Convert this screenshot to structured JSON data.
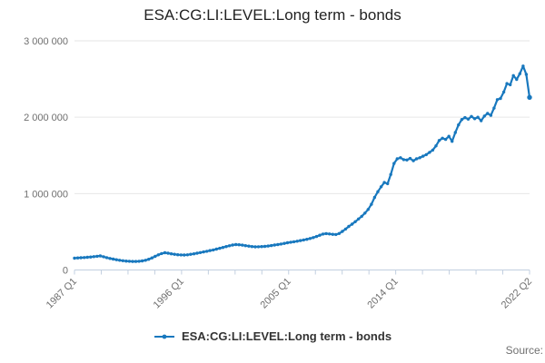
{
  "chart_data": {
    "type": "line",
    "title": "ESA:CG:LI:LEVEL:Long term - bonds",
    "legend_position": "bottom",
    "grid": "horizontal",
    "x_axis": {
      "tick_count": 18,
      "labeled_ticks": [
        {
          "index": 0,
          "label": "1987 Q1"
        },
        {
          "index": 4,
          "label": "1996 Q1"
        },
        {
          "index": 8,
          "label": "2005 Q1"
        },
        {
          "index": 12,
          "label": "2014 Q1"
        },
        {
          "index": 17,
          "label": "2022 Q2"
        }
      ]
    },
    "y_axis": {
      "min": 0,
      "max": 3000000,
      "ticks": [
        {
          "value": 0,
          "label": "0"
        },
        {
          "value": 1000000,
          "label": "1 000 000"
        },
        {
          "value": 2000000,
          "label": "2 000 000"
        },
        {
          "value": 3000000,
          "label": "3 000 000"
        }
      ]
    },
    "series": [
      {
        "name": "ESA:CG:LI:LEVEL:Long term - bonds",
        "color": "#1878be",
        "point_count": 142,
        "values": [
          155000,
          158000,
          160000,
          163000,
          166000,
          170000,
          175000,
          180000,
          184000,
          173000,
          162000,
          151000,
          142000,
          134000,
          127000,
          121000,
          117000,
          114000,
          112000,
          112000,
          114000,
          119000,
          127000,
          140000,
          158000,
          178000,
          198000,
          215000,
          226000,
          220000,
          212000,
          205000,
          200000,
          197000,
          196000,
          199000,
          205000,
          212000,
          220000,
          228000,
          236000,
          245000,
          254000,
          263000,
          273000,
          284000,
          295000,
          306000,
          317000,
          327000,
          333000,
          330000,
          326000,
          319000,
          313000,
          307000,
          303000,
          304000,
          306000,
          309000,
          314000,
          320000,
          327000,
          333000,
          340000,
          348000,
          356000,
          363000,
          370000,
          377000,
          385000,
          393000,
          402000,
          412000,
          424000,
          438000,
          455000,
          470000,
          476000,
          472000,
          467000,
          465000,
          478000,
          505000,
          536000,
          570000,
          600000,
          632000,
          668000,
          702000,
          745000,
          792000,
          860000,
          950000,
          1025000,
          1090000,
          1145000,
          1130000,
          1250000,
          1395000,
          1455000,
          1470000,
          1445000,
          1440000,
          1460000,
          1430000,
          1455000,
          1470000,
          1490000,
          1510000,
          1540000,
          1570000,
          1625000,
          1695000,
          1725000,
          1710000,
          1750000,
          1685000,
          1800000,
          1900000,
          1970000,
          1995000,
          1975000,
          2010000,
          1980000,
          2000000,
          1955000,
          2015000,
          2050000,
          2025000,
          2120000,
          2230000,
          2245000,
          2330000,
          2440000,
          2425000,
          2545000,
          2495000,
          2570000,
          2670000,
          2560000,
          2260000
        ]
      }
    ],
    "colors": {
      "line": "#1878be",
      "grid": "#e6e6e6",
      "axis_line": "#c2cfe0",
      "axis_text": "#6e6e6e",
      "title_text": "#222222",
      "legend_text": "#333333",
      "source_text": "#707070"
    }
  },
  "footer": {
    "source": "Source:"
  }
}
